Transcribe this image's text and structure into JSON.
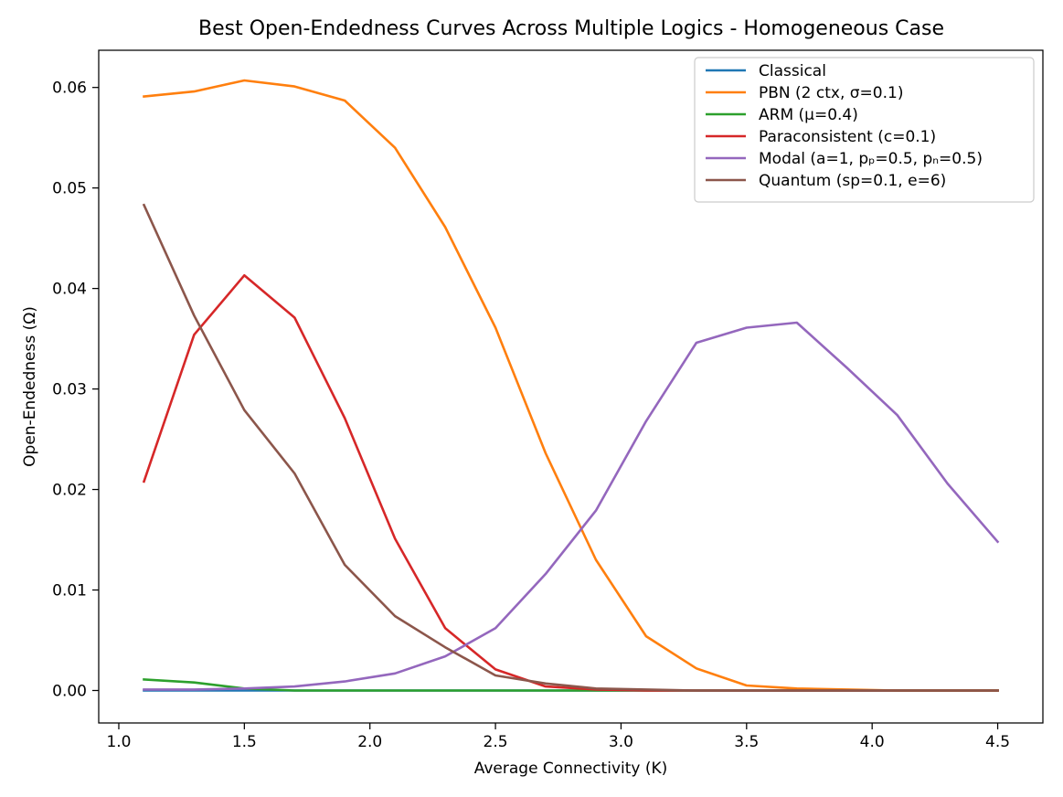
{
  "chart_data": {
    "type": "line",
    "title": "Best Open-Endedness Curves Across Multiple Logics - Homogeneous Case",
    "xlabel": "Average Connectivity (K)",
    "ylabel": "Open-Endedness (Ω)",
    "xlim": [
      0.92,
      4.68
    ],
    "ylim": [
      -0.00323,
      0.0637
    ],
    "x_ticks": [
      1.0,
      1.5,
      2.0,
      2.5,
      3.0,
      3.5,
      4.0,
      4.5
    ],
    "x_tick_labels": [
      "1.0",
      "1.5",
      "2.0",
      "2.5",
      "3.0",
      "3.5",
      "4.0",
      "4.5"
    ],
    "y_ticks": [
      0.0,
      0.01,
      0.02,
      0.03,
      0.04,
      0.05,
      0.06
    ],
    "y_tick_labels": [
      "0.00",
      "0.01",
      "0.02",
      "0.03",
      "0.04",
      "0.05",
      "0.06"
    ],
    "grid": false,
    "legend_position": "upper right",
    "x": [
      1.1,
      1.3,
      1.5,
      1.7,
      1.9,
      2.1,
      2.3,
      2.5,
      2.7,
      2.9,
      3.1,
      3.3,
      3.5,
      3.7,
      3.9,
      4.1,
      4.3,
      4.5
    ],
    "series": [
      {
        "name": "Classical",
        "color": "#1f77b4",
        "values": [
          0,
          0,
          0,
          0,
          0,
          0,
          0,
          0,
          0,
          0,
          0,
          0,
          0,
          0,
          0,
          0,
          0,
          0
        ]
      },
      {
        "name": "PBN (2 ctx, σ=0.1)",
        "color": "#ff7f0e",
        "values": [
          0.0591,
          0.0596,
          0.0607,
          0.0601,
          0.0587,
          0.054,
          0.0461,
          0.0361,
          0.0236,
          0.013,
          0.0054,
          0.0022,
          0.0005,
          0.0002,
          0.0001,
          0,
          0,
          0
        ]
      },
      {
        "name": "ARM (μ=0.4)",
        "color": "#2ca02c",
        "values": [
          0.0011,
          0.0008,
          0.0002,
          0,
          0,
          0,
          0,
          0,
          0,
          0,
          0,
          0,
          0,
          0,
          0,
          0,
          0,
          0
        ]
      },
      {
        "name": "Paraconsistent (c=0.1)",
        "color": "#d62728",
        "values": [
          0.0208,
          0.0354,
          0.0413,
          0.0371,
          0.0271,
          0.0151,
          0.0062,
          0.0021,
          0.0004,
          0.0001,
          0,
          0,
          0,
          0,
          0,
          0,
          0,
          0
        ]
      },
      {
        "name": "Modal (a=1, pₚ=0.5, pₙ=0.5)",
        "color": "#9467bd",
        "values": [
          0.0001,
          0.0001,
          0.0002,
          0.0004,
          0.0009,
          0.0017,
          0.0034,
          0.0062,
          0.0116,
          0.0179,
          0.0268,
          0.0346,
          0.0361,
          0.0366,
          0.0321,
          0.0274,
          0.0206,
          0.0148
        ]
      },
      {
        "name": "Quantum (sp=0.1, e=6)",
        "color": "#8c564b",
        "values": [
          0.0483,
          0.0373,
          0.0279,
          0.0216,
          0.0125,
          0.0074,
          0.0043,
          0.0015,
          0.0007,
          0.0002,
          0.0001,
          0,
          0,
          0,
          0,
          0,
          0,
          0
        ]
      }
    ]
  }
}
